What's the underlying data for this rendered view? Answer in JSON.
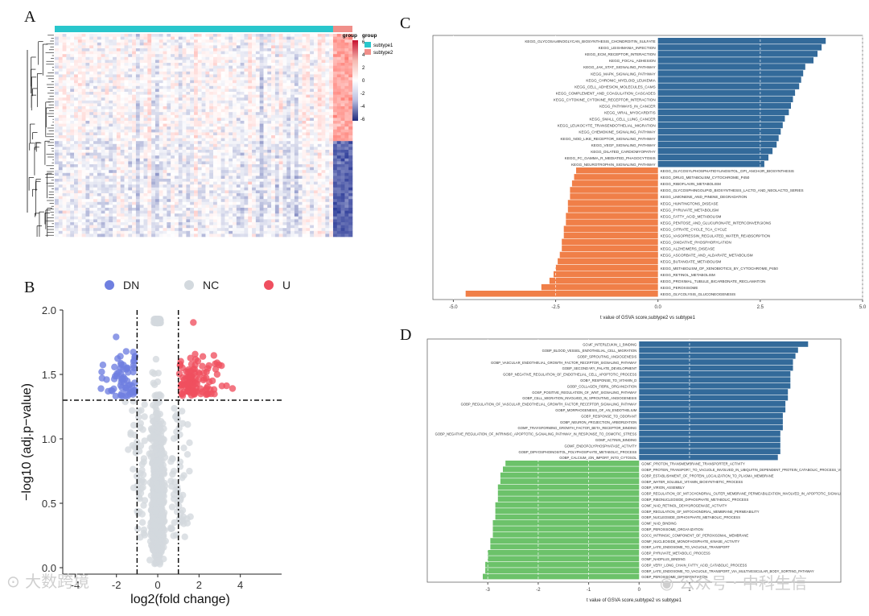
{
  "panels": {
    "a": "A",
    "b": "B",
    "c": "C",
    "d": "D"
  },
  "watermarks": {
    "left": "大数跨境",
    "right": "公众号 · 中科生信"
  },
  "chart_data": [
    {
      "id": "A",
      "type": "heatmap",
      "title": "",
      "legend": {
        "group_title": "group",
        "groups": [
          {
            "name": "subtype1",
            "color": "#29c6cc"
          },
          {
            "name": "subtype2",
            "color": "#f08f8a"
          }
        ],
        "scale_ticks": [
          "6",
          "4",
          "2",
          "0",
          "-2",
          "-4",
          "-6"
        ],
        "scale_colors": [
          "#c8102e",
          "#f5b8b0",
          "#ffffff",
          "#b8bde0",
          "#1f2a7c"
        ]
      },
      "subtype1_columns": 72,
      "subtype2_columns": 5
    },
    {
      "id": "B",
      "type": "scatter",
      "xlabel": "log2(fold change)",
      "ylabel": "−log10 (adj.p−value)",
      "xlim": [
        -4.6,
        6.0
      ],
      "ylim": [
        -0.05,
        2.0
      ],
      "xticks": [
        "-4",
        "-2",
        "0",
        "2",
        "4"
      ],
      "xtick_values": [
        -4,
        -2,
        0,
        2,
        4
      ],
      "yticks": [
        "0.0",
        "0.5",
        "1.0",
        "1.5",
        "2.0"
      ],
      "ytick_values": [
        0,
        0.5,
        1.0,
        1.5,
        2.0
      ],
      "legend": [
        {
          "label": "DN",
          "color": "#6f7fe0"
        },
        {
          "label": "NC",
          "color": "#d3d9de"
        },
        {
          "label": "UP",
          "color": "#ef4f5f"
        }
      ],
      "thresholds": {
        "fc": [
          -1,
          1
        ],
        "p": 1.3
      }
    },
    {
      "id": "C",
      "type": "bar",
      "orientation": "horizontal",
      "xlabel": "t value of GSVA score,subtype2 vs subtype1",
      "xlim": [
        -5.5,
        5.0
      ],
      "xticks": [
        "-5.0",
        "-2.5",
        "0.0",
        "2.5",
        "5.0"
      ],
      "xtick_values": [
        -5.0,
        -2.5,
        0.0,
        2.5,
        5.0
      ],
      "pos_color": "#336a9a",
      "neg_color": "#f07f48",
      "categories": [
        "KEGG_GLYCOSAMINOGLYCAN_BIOSYNTHESIS_CHONDROITIN_SULFATE",
        "KEGG_LEISHMANIA_INFECTION",
        "KEGG_ECM_RECEPTOR_INTERACTION",
        "KEGG_FOCAL_ADHESION",
        "KEGG_JAK_STAT_SIGNALING_PATHWAY",
        "KEGG_MAPK_SIGNALING_PATHWAY",
        "KEGG_CHRONIC_MYELOID_LEUKEMIA",
        "KEGG_CELL_ADHESION_MOLECULES_CAMS",
        "KEGG_COMPLEMENT_AND_COAGULATION_CASCADES",
        "KEGG_CYTOKINE_CYTOKINE_RECEPTOR_INTERACTION",
        "KEGG_PATHWAYS_IN_CANCER",
        "KEGG_VIRAL_MYOCARDITIS",
        "KEGG_SMALL_CELL_LUNG_CANCER",
        "KEGG_LEUKOCYTE_TRANSENDOTHELIAL_MIGRATION",
        "KEGG_CHEMOKINE_SIGNALING_PATHWAY",
        "KEGG_NOD_LIKE_RECEPTOR_SIGNALING_PATHWAY",
        "KEGG_VEGF_SIGNALING_PATHWAY",
        "KEGG_DILATED_CARDIOMYOPATHY",
        "KEGG_FC_GAMMA_R_MEDIATED_PHAGOCYTOSIS",
        "KEGG_NEUROTROPHIN_SIGNALING_PATHWAY",
        "KEGG_GLYCOSYLPHOSPHATIDYLINOSITOL_GPI_ANCHOR_BIOSYNTHESIS",
        "KEGG_DRUG_METABOLISM_CYTOCHROME_P450",
        "KEGG_RIBOFLAVIN_METABOLISM",
        "KEGG_GLYCOSPHINGOLIPID_BIOSYNTHESIS_LACTO_AND_NEOLACTO_SERIES",
        "KEGG_LIMONENE_AND_PINENE_DEGRADATION",
        "KEGG_HUNTINGTONS_DISEASE",
        "KEGG_PYRUVATE_METABOLISM",
        "KEGG_FATTY_ACID_METABOLISM",
        "KEGG_PENTOSE_AND_GLUCURONATE_INTERCONVERSIONS",
        "KEGG_CITRATE_CYCLE_TCA_CYCLE",
        "KEGG_VASOPRESSIN_REGULATED_WATER_REABSORPTION",
        "KEGG_OXIDATIVE_PHOSPHORYLATION",
        "KEGG_ALZHEIMERS_DISEASE",
        "KEGG_ASCORBATE_AND_ALDARATE_METABOLISM",
        "KEGG_BUTANOATE_METABOLISM",
        "KEGG_METABOLISM_OF_XENOBIOTICS_BY_CYTOCHROME_P450",
        "KEGG_RETINOL_METABOLISM",
        "KEGG_PROXIMAL_TUBULE_BICARBONATE_RECLAMATION",
        "KEGG_PEROXISOME",
        "KEGG_GLYCOLYSIS_GLUCONEOGENESIS"
      ],
      "values": [
        4.1,
        4.0,
        3.9,
        3.8,
        3.6,
        3.55,
        3.5,
        3.45,
        3.35,
        3.3,
        3.25,
        3.2,
        3.1,
        3.05,
        3.0,
        2.95,
        2.9,
        2.8,
        2.7,
        2.6,
        -2.0,
        -2.05,
        -2.1,
        -2.15,
        -2.15,
        -2.2,
        -2.2,
        -2.25,
        -2.25,
        -2.3,
        -2.3,
        -2.35,
        -2.35,
        -2.4,
        -2.45,
        -2.5,
        -2.55,
        -2.65,
        -2.85,
        -4.7
      ]
    },
    {
      "id": "D",
      "type": "bar",
      "orientation": "horizontal",
      "xlabel": "t value of GSVA score,subtype2 vs subtype1",
      "xlim": [
        -4.2,
        4.0
      ],
      "xticks": [
        "-3",
        "-2",
        "-1",
        "0",
        "1"
      ],
      "xtick_values": [
        -3,
        -2,
        -1,
        0,
        1
      ],
      "pos_color": "#336a9a",
      "neg_color": "#6cc26a",
      "categories": [
        "GOMF_INTERLEUKIN_1_BINDING",
        "GOBP_BLOOD_VESSEL_ENDOTHELIAL_CELL_MIGRATION",
        "GOBP_SPROUTING_ANGIOGENESIS",
        "GOBP_VASCULAR_ENDOTHELIAL_GROWTH_FACTOR_RECEPTOR_SIGNALING_PATHWAY",
        "GOBP_SECONDARY_PALATE_DEVELOPMENT",
        "GOBP_NEGATIVE_REGULATION_OF_ENDOTHELIAL_CELL_APOPTOTIC_PROCESS",
        "GOBP_RESPONSE_TO_VITAMIN_D",
        "GOBP_COLLAGEN_FIBRIL_ORGANIZATION",
        "GOBP_POSITIVE_REGULATION_OF_WNT_SIGNALING_PATHWAY",
        "GOBP_CELL_MIGRATION_INVOLVED_IN_SPROUTING_ANGIOGENESIS",
        "GOBP_REGULATION_OF_VASCULAR_ENDOTHELIAL_GROWTH_FACTOR_RECEPTOR_SIGNALING_PATHWAY",
        "GOBP_MORPHOGENESIS_OF_AN_ENDOTHELIUM",
        "GOBP_RESPONSE_TO_ODORANT",
        "GOBP_NEURON_PROJECTION_ARBORIZATION",
        "GOMF_TRANSFORMING_GROWTH_FACTOR_BETA_RECEPTOR_BINDING",
        "GOBP_NEGATIVE_REGULATION_OF_INTRINSIC_APOPTOTIC_SIGNALING_PATHWAY_IN_RESPONSE_TO_OSMOTIC_STRESS",
        "GOMF_ACTININ_BINDING",
        "GOMF_ENDOPOLYPHOSPHATASE_ACTIVITY",
        "GOBP_DIPHOSPHOINOSITOL_POLYPHOSPHATE_METABOLIC_PROCESS",
        "GOBP_CALCIUM_ION_IMPORT_INTO_CYTOSOL",
        "GOMF_PROTON_TRANSMEMBRANE_TRANSPORTER_ACTIVITY",
        "GOBP_PROTEIN_TRANSPORT_TO_VACUOLE_INVOLVED_IN_UBIQUITIN_DEPENDENT_PROTEIN_CATABOLIC_PROCESS_VI",
        "GOBP_ESTABLISHMENT_OF_PROTEIN_LOCALIZATION_TO_PLASMA_MEMBRANE",
        "GOBP_WATER_SOLUBLE_VITAMIN_BIOSYNTHETIC_PROCESS",
        "GOBP_VIRION_ASSEMBLY",
        "GOBP_REGULATION_OF_MITOCHONDRIAL_OUTER_MEMBRANE_PERMEABILIZATION_INVOLVED_IN_APOPTOTIC_SIGNALI",
        "GOBP_RIBONUCLEOSIDE_DIPHOSPHATE_METABOLIC_PROCESS",
        "GOMF_NAD_RETINOL_DEHYDROGENASE_ACTIVITY",
        "GOBP_REGULATION_OF_MITOCHONDRIAL_MEMBRANE_PERMEABILITY",
        "GOBP_NUCLEOSIDE_DIPHOSPHATE_METABOLIC_PROCESS",
        "GOMF_NAD_BINDING",
        "GOBP_PEROXISOME_ORGANIZATION",
        "GOCC_INTRINSIC_COMPONENT_OF_PEROXISOMAL_MEMBRANE",
        "GOMF_NUCLEOSIDE_MONOPHOSPHATE_KINASE_ACTIVITY",
        "GOBP_LATE_ENDOSOME_TO_VACUOLE_TRANSPORT",
        "GOBP_PYRUVATE_METABOLIC_PROCESS",
        "GOMF_NADPLUS_BINDING",
        "GOBP_VERY_LONG_CHAIN_FATTY_ACID_CATABOLIC_PROCESS",
        "GOBP_LATE_ENDOSOME_TO_VACUOLE_TRANSPORT_VIA_MULTIVESICULAR_BODY_SORTING_PATHWAY",
        "GOBP_PEROXISOME_DIFFERENTIATION"
      ],
      "values": [
        3.35,
        3.15,
        3.1,
        3.05,
        3.05,
        3.0,
        3.0,
        3.0,
        2.95,
        2.95,
        2.9,
        2.9,
        2.85,
        2.85,
        2.85,
        2.8,
        2.8,
        2.8,
        2.8,
        2.75,
        -2.65,
        -2.7,
        -2.75,
        -2.75,
        -2.8,
        -2.8,
        -2.8,
        -2.85,
        -2.85,
        -2.85,
        -2.9,
        -2.9,
        -2.9,
        -2.95,
        -2.95,
        -3.0,
        -3.0,
        -3.05,
        -3.05,
        -3.1
      ]
    }
  ]
}
